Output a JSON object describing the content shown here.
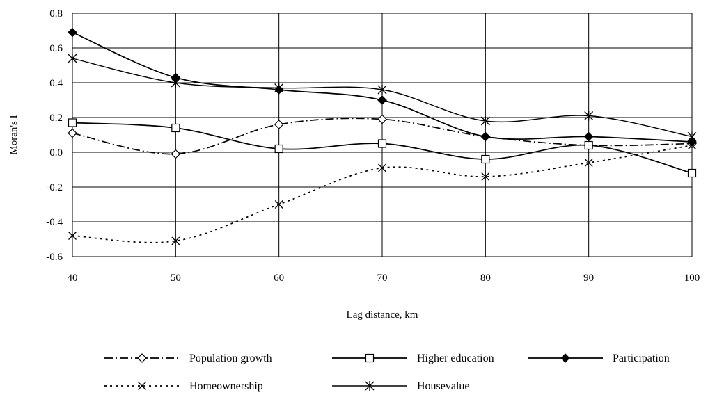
{
  "chart_data": {
    "type": "line",
    "xlabel": "Lag distance, km",
    "ylabel": "Moran's I",
    "x": [
      40,
      50,
      60,
      70,
      80,
      90,
      100
    ],
    "xlim": [
      40,
      100
    ],
    "ylim": [
      -0.6,
      0.8
    ],
    "x_ticks": [
      "40",
      "50",
      "60",
      "70",
      "80",
      "90",
      "100"
    ],
    "y_ticks": [
      "0.8",
      "0.6",
      "0.4",
      "0.2",
      "0.0",
      "-0.2",
      "-0.4",
      "-0.6"
    ],
    "grid": true,
    "legend_position": "bottom",
    "series": [
      {
        "name": "Population growth",
        "values": [
          0.11,
          -0.01,
          0.16,
          0.19,
          0.09,
          0.04,
          0.05
        ],
        "marker": "diamond-open",
        "line": "dash-dot",
        "color": "#000000"
      },
      {
        "name": "Higher education",
        "values": [
          0.17,
          0.14,
          0.02,
          0.05,
          -0.04,
          0.04,
          -0.12
        ],
        "marker": "square-open",
        "line": "solid",
        "color": "#000000"
      },
      {
        "name": "Participation",
        "values": [
          0.69,
          0.43,
          0.36,
          0.3,
          0.09,
          0.09,
          0.06
        ],
        "marker": "diamond-filled",
        "line": "solid",
        "color": "#000000"
      },
      {
        "name": "Homeownership",
        "values": [
          -0.48,
          -0.51,
          -0.3,
          -0.09,
          -0.14,
          -0.06,
          0.04
        ],
        "marker": "x",
        "line": "dotted",
        "color": "#000000"
      },
      {
        "name": "Housevalue",
        "values": [
          0.54,
          0.4,
          0.37,
          0.36,
          0.18,
          0.21,
          0.09
        ],
        "marker": "asterisk",
        "line": "solid-thin",
        "color": "#000000"
      }
    ]
  }
}
